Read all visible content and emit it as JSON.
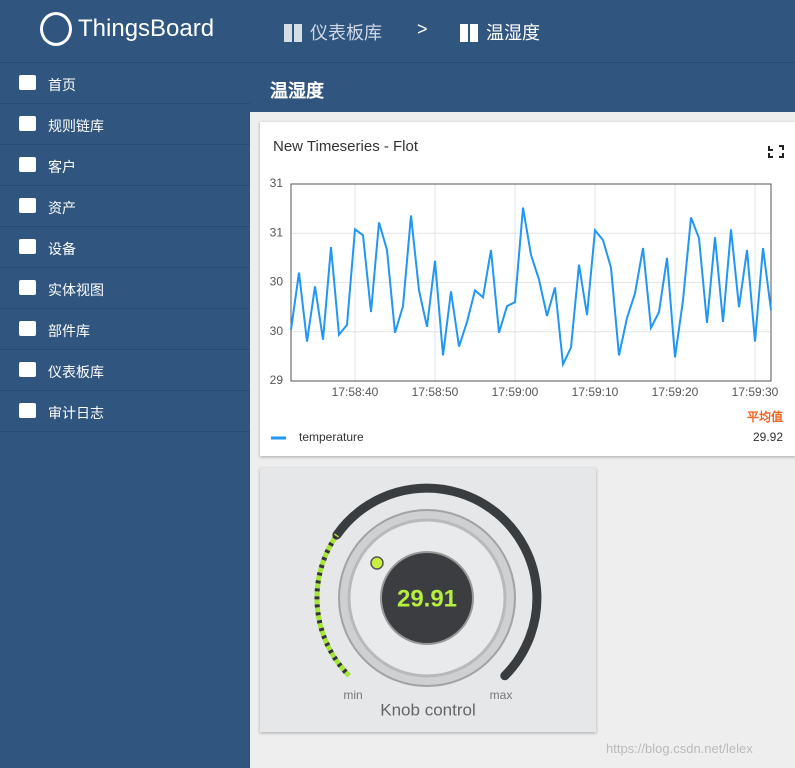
{
  "brand": "ThingsBoard",
  "breadcrumb": [
    "仪表板库",
    ">",
    "温湿度"
  ],
  "page_title": "温湿度",
  "menu": [
    "首页",
    "规则链库",
    "客户",
    "资产",
    "设备",
    "实体视图",
    "部件库",
    "仪表板库",
    "审计日志"
  ],
  "chart": {
    "type": "line",
    "title": "New Timeseries - Flot",
    "x": [
      "17:58:32",
      "17:58:33",
      "17:58:34",
      "17:58:35",
      "17:58:36",
      "17:58:37",
      "17:58:38",
      "17:58:39",
      "17:58:40",
      "17:58:41",
      "17:58:42",
      "17:58:43",
      "17:58:44",
      "17:58:45",
      "17:58:46",
      "17:58:47",
      "17:58:48",
      "17:58:49",
      "17:58:50",
      "17:58:51",
      "17:58:52",
      "17:58:53",
      "17:58:54",
      "17:58:55",
      "17:58:56",
      "17:58:57",
      "17:58:58",
      "17:58:59",
      "17:59:00",
      "17:59:01",
      "17:59:02",
      "17:59:03",
      "17:59:04",
      "17:59:05",
      "17:59:06",
      "17:59:07",
      "17:59:08",
      "17:59:09",
      "17:59:10",
      "17:59:11",
      "17:59:12",
      "17:59:13",
      "17:59:14",
      "17:59:15",
      "17:59:16",
      "17:59:17",
      "17:59:18",
      "17:59:19",
      "17:59:20",
      "17:59:21",
      "17:59:22",
      "17:59:23",
      "17:59:24",
      "17:59:25",
      "17:59:26",
      "17:59:27",
      "17:59:28",
      "17:59:29",
      "17:59:30",
      "17:59:31",
      "17:59:32"
    ],
    "series": [
      {
        "name": "temperature",
        "color": "#2196f3",
        "values": [
          29.52,
          30.1,
          29.4,
          29.96,
          29.42,
          30.36,
          29.47,
          29.57,
          30.54,
          30.48,
          29.7,
          30.61,
          30.33,
          29.49,
          29.76,
          30.68,
          29.92,
          29.55,
          30.22,
          29.26,
          29.91,
          29.35,
          29.6,
          29.92,
          29.85,
          30.33,
          29.49,
          29.76,
          29.8,
          30.76,
          30.28,
          30.03,
          29.66,
          29.95,
          29.17,
          29.34,
          30.18,
          29.67,
          30.53,
          30.43,
          30.15,
          29.26,
          29.64,
          29.89,
          30.35,
          29.54,
          29.7,
          30.25,
          29.24,
          29.82,
          30.66,
          30.45,
          29.59,
          30.46,
          29.6,
          30.54,
          29.75,
          30.33,
          29.4,
          30.35,
          29.72
        ]
      }
    ],
    "xlim": [
      "17:58:32",
      "17:59:32"
    ],
    "xticks": [
      "17:58:40",
      "17:58:50",
      "17:59:00",
      "17:59:10",
      "17:59:20",
      "17:59:30"
    ],
    "ylim": [
      29,
      31
    ],
    "yticks": [
      29,
      {
        "value": 29.5,
        "label": "30"
      },
      30,
      {
        "value": 30.5,
        "label": "31"
      },
      31
    ],
    "grid": true,
    "legend_header": "平均值",
    "legend_value": "29.92"
  },
  "knob": {
    "value": "29.91",
    "min_label": "min",
    "max_label": "max",
    "title": "Knob control"
  },
  "watermark": "https://blog.csdn.net/lelex"
}
